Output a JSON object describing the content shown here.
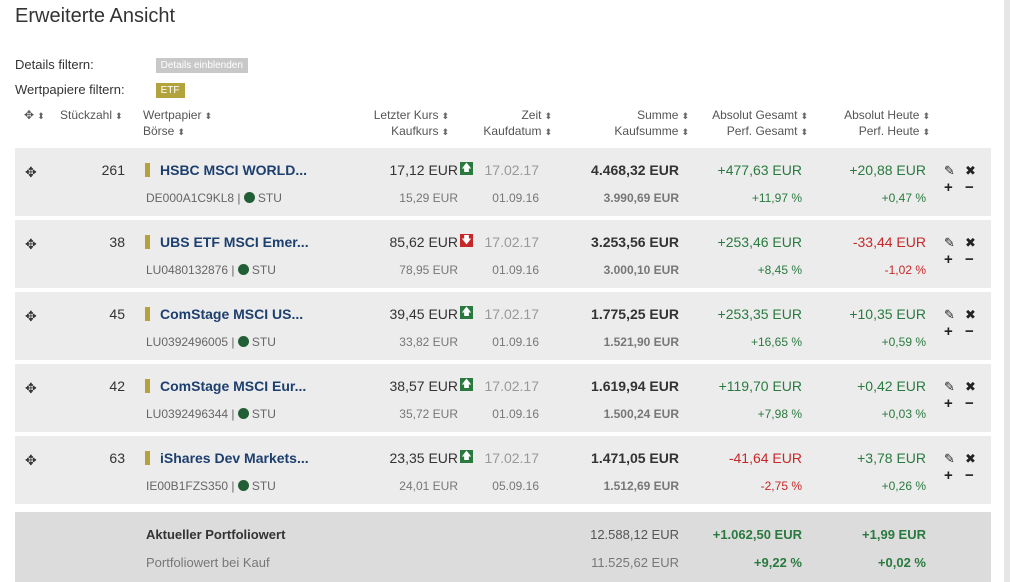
{
  "page_title": "Erweiterte Ansicht",
  "filters": [
    {
      "label": "Details filtern:",
      "chip": "Details einblenden",
      "color": "#c8c8c8"
    },
    {
      "label": "Wertpapiere filtern:",
      "chip": "ETF",
      "color": "#b3a33d"
    }
  ],
  "headers": {
    "stueck": "Stückzahl",
    "wertpapier": "Wertpapier",
    "boerse": "Börse",
    "letzter_kurs": "Letzter Kurs",
    "kaufkurs": "Kaufkurs",
    "zeit": "Zeit",
    "kaufdatum": "Kaufdatum",
    "summe": "Summe",
    "kaufsumme": "Kaufsumme",
    "abs_gesamt": "Absolut Gesamt",
    "perf_gesamt": "Perf. Gesamt",
    "abs_heute": "Absolut Heute",
    "perf_heute": "Perf. Heute",
    "sort_icon": "sort-arrows-icon"
  },
  "rows": [
    {
      "qty": "261",
      "name": "HSBC MSCI WORLD...",
      "isin": "DE000A1C9KL8 |",
      "exchange": "STU",
      "last": "17,12 EUR",
      "trend": "up",
      "buy": "15,29 EUR",
      "time": "17.02.17",
      "buy_date": "01.09.16",
      "sum": "4.468,32 EUR",
      "buy_sum": "3.990,69 EUR",
      "abs_total": "+477,63 EUR",
      "perf_total": "+11,97 %",
      "abs_today": "+20,88 EUR",
      "perf_today": "+0,47 %",
      "total_sign": "pos",
      "today_sign": "pos"
    },
    {
      "qty": "38",
      "name": "UBS ETF MSCI Emer...",
      "isin": "LU0480132876 |",
      "exchange": "STU",
      "last": "85,62 EUR",
      "trend": "down",
      "buy": "78,95 EUR",
      "time": "17.02.17",
      "buy_date": "01.09.16",
      "sum": "3.253,56 EUR",
      "buy_sum": "3.000,10 EUR",
      "abs_total": "+253,46 EUR",
      "perf_total": "+8,45 %",
      "abs_today": "-33,44 EUR",
      "perf_today": "-1,02 %",
      "total_sign": "pos",
      "today_sign": "neg"
    },
    {
      "qty": "45",
      "name": "ComStage MSCI US...",
      "isin": "LU0392496005 |",
      "exchange": "STU",
      "last": "39,45 EUR",
      "trend": "up",
      "buy": "33,82 EUR",
      "time": "17.02.17",
      "buy_date": "01.09.16",
      "sum": "1.775,25 EUR",
      "buy_sum": "1.521,90 EUR",
      "abs_total": "+253,35 EUR",
      "perf_total": "+16,65 %",
      "abs_today": "+10,35 EUR",
      "perf_today": "+0,59 %",
      "total_sign": "pos",
      "today_sign": "pos"
    },
    {
      "qty": "42",
      "name": "ComStage MSCI Eur...",
      "isin": "LU0392496344 |",
      "exchange": "STU",
      "last": "38,57 EUR",
      "trend": "up",
      "buy": "35,72 EUR",
      "time": "17.02.17",
      "buy_date": "01.09.16",
      "sum": "1.619,94 EUR",
      "buy_sum": "1.500,24 EUR",
      "abs_total": "+119,70 EUR",
      "perf_total": "+7,98 %",
      "abs_today": "+0,42 EUR",
      "perf_today": "+0,03 %",
      "total_sign": "pos",
      "today_sign": "pos"
    },
    {
      "qty": "63",
      "name": "iShares Dev Markets...",
      "isin": "IE00B1FZS350 |",
      "exchange": "STU",
      "last": "23,35 EUR",
      "trend": "up",
      "buy": "24,01 EUR",
      "time": "17.02.17",
      "buy_date": "05.09.16",
      "sum": "1.471,05 EUR",
      "buy_sum": "1.512,69 EUR",
      "abs_total": "-41,64 EUR",
      "perf_total": "-2,75 %",
      "abs_today": "+3,78 EUR",
      "perf_today": "+0,26 %",
      "total_sign": "neg",
      "today_sign": "pos"
    }
  ],
  "totals": {
    "current_label": "Aktueller Portfoliowert",
    "current_value": "12.588,12 EUR",
    "current_abs_total": "+1.062,50 EUR",
    "current_abs_today": "+1,99 EUR",
    "buy_label": "Portfoliowert bei Kauf",
    "buy_value": "11.525,62 EUR",
    "buy_perf_total": "+9,22 %",
    "buy_perf_today": "+0,02 %"
  },
  "colors": {
    "positive": "#2a7a3f",
    "negative": "#c62828",
    "name_link": "#1d3f6e",
    "etf_marker": "#b3a33d",
    "row_bg": "#ececec"
  },
  "icons": {
    "move": "move-icon",
    "edit": "pencil-icon",
    "delete": "close-icon",
    "add": "plus-icon",
    "remove": "minus-icon",
    "exchange": "clock-icon",
    "trend_up": "arrow-up-icon",
    "trend_down": "arrow-down-icon"
  }
}
